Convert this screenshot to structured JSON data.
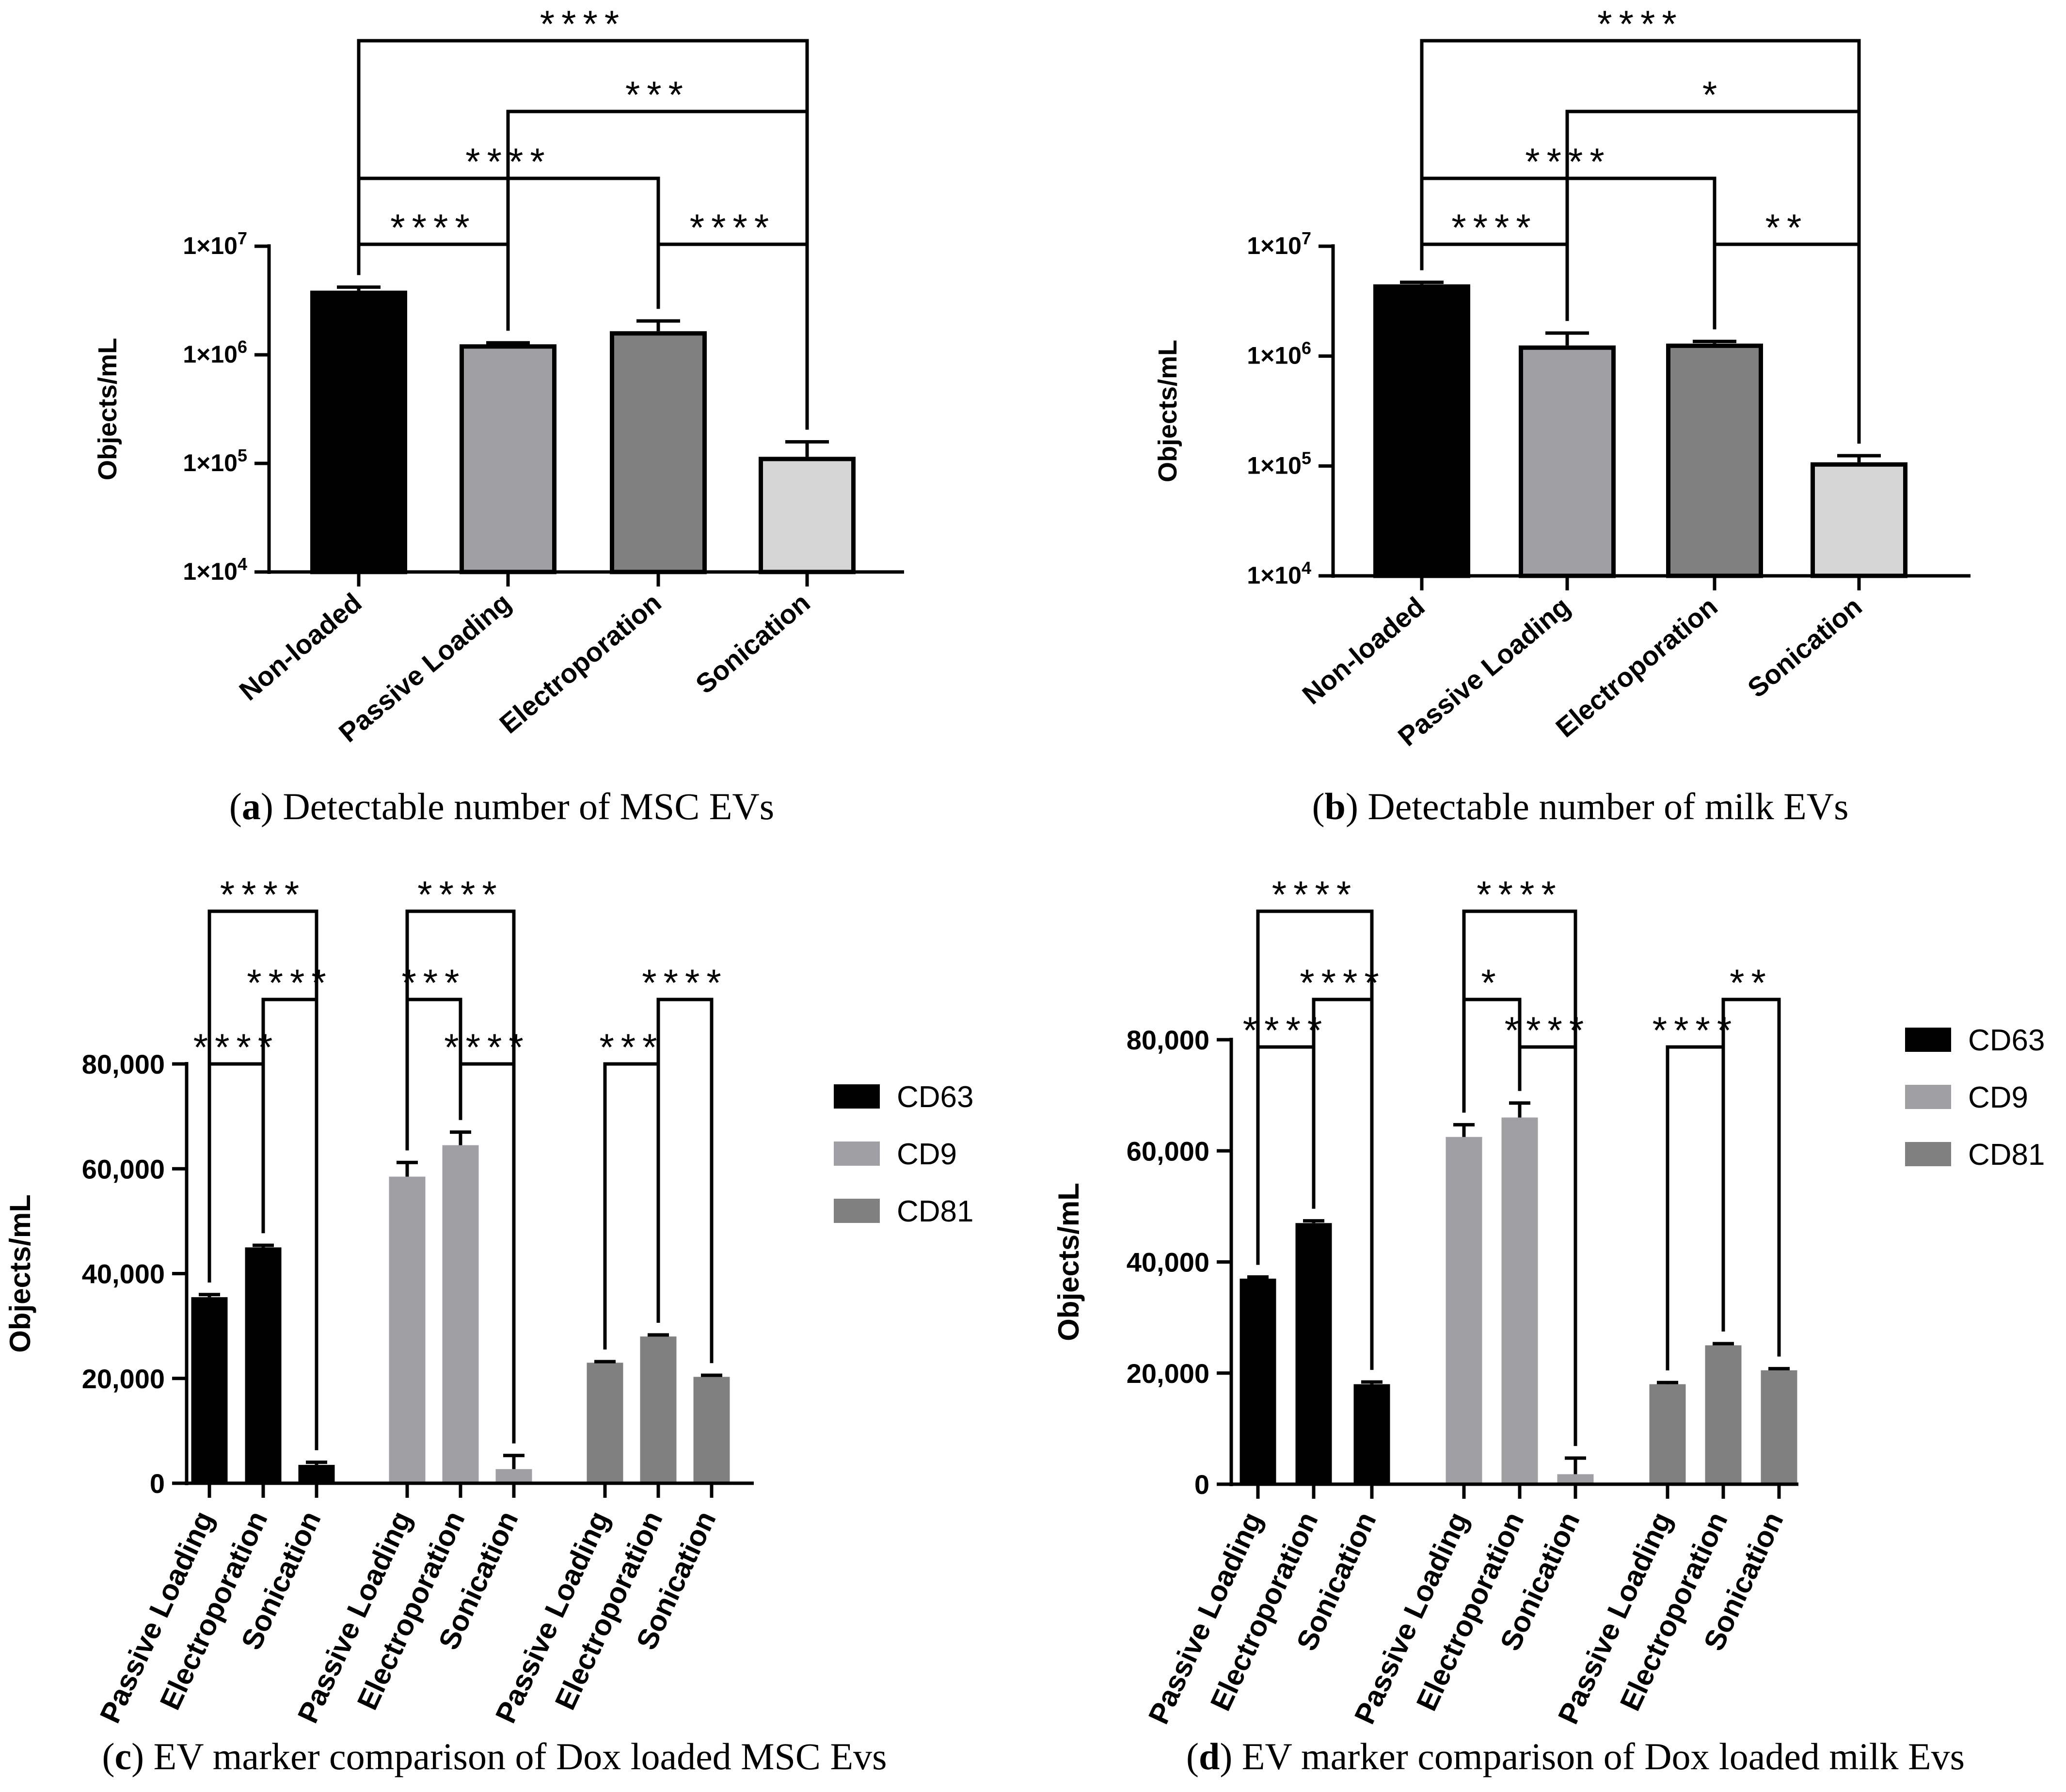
{
  "colors": {
    "non_loaded": "#000000",
    "passive": "#a0a0a4",
    "electro": "#808080",
    "sonication": "#d6d6d6",
    "cd63": "#000000",
    "cd9": "#a0a0a4",
    "cd81": "#808080",
    "axis": "#000000"
  },
  "chart_data": [
    {
      "panel": "a",
      "type": "bar",
      "scale": "log",
      "caption_letter": "a",
      "caption_text": ") Detectable number of MSC EVs",
      "ylabel": "Objects/mL",
      "ylim": [
        10000,
        10000000
      ],
      "yticks": [
        {
          "value": 10000,
          "base": "1×10",
          "exp": "4"
        },
        {
          "value": 100000,
          "base": "1×10",
          "exp": "5"
        },
        {
          "value": 1000000,
          "base": "1×10",
          "exp": "6"
        },
        {
          "value": 10000000,
          "base": "1×10",
          "exp": "7"
        }
      ],
      "categories": [
        "Non-loaded",
        "Passive Loading",
        "Electroporation",
        "Sonication"
      ],
      "values": [
        3900000,
        1250000,
        1650000,
        115000
      ],
      "errors": [
        4200000,
        1290000,
        2050000,
        158000
      ],
      "bar_colors": [
        "#000000",
        "#a0a0a4",
        "#808080",
        "#d6d6d6"
      ],
      "comparisons": [
        {
          "from": 0,
          "to": 1,
          "label": "****"
        },
        {
          "from": 2,
          "to": 3,
          "label": "****"
        },
        {
          "from": 0,
          "to": 2,
          "label": "****"
        },
        {
          "from": 1,
          "to": 3,
          "label": "***"
        },
        {
          "from": 0,
          "to": 3,
          "label": "****"
        }
      ]
    },
    {
      "panel": "b",
      "type": "bar",
      "scale": "log",
      "caption_letter": "b",
      "caption_text": ") Detectable number of milk EVs",
      "ylabel": "Objects/mL",
      "ylim": [
        10000,
        10000000
      ],
      "yticks": [
        {
          "value": 10000,
          "base": "1×10",
          "exp": "4"
        },
        {
          "value": 100000,
          "base": "1×10",
          "exp": "5"
        },
        {
          "value": 1000000,
          "base": "1×10",
          "exp": "6"
        },
        {
          "value": 10000000,
          "base": "1×10",
          "exp": "7"
        }
      ],
      "categories": [
        "Non-loaded",
        "Passive Loading",
        "Electroporation",
        "Sonication"
      ],
      "values": [
        4500000,
        1250000,
        1300000,
        108000
      ],
      "errors": [
        4700000,
        1620000,
        1360000,
        124000
      ],
      "bar_colors": [
        "#000000",
        "#a0a0a4",
        "#808080",
        "#d6d6d6"
      ],
      "comparisons": [
        {
          "from": 0,
          "to": 1,
          "label": "****"
        },
        {
          "from": 2,
          "to": 3,
          "label": "**"
        },
        {
          "from": 0,
          "to": 2,
          "label": "****"
        },
        {
          "from": 1,
          "to": 3,
          "label": "*"
        },
        {
          "from": 0,
          "to": 3,
          "label": "****"
        }
      ]
    },
    {
      "panel": "c",
      "type": "bar",
      "scale": "linear",
      "caption_letter": "c",
      "caption_text": ") EV marker comparison of Dox loaded MSC Evs",
      "ylabel": "Objects/mL",
      "ylim": [
        0,
        80000
      ],
      "yticks": [
        {
          "value": 0,
          "label": "0"
        },
        {
          "value": 20000,
          "label": "20,000"
        },
        {
          "value": 40000,
          "label": "40,000"
        },
        {
          "value": 60000,
          "label": "60,000"
        },
        {
          "value": 80000,
          "label": "80,000"
        }
      ],
      "categories": [
        "Passive Loading",
        "Electroporation",
        "Sonication",
        "Passive Loading",
        "Electroporation",
        "Sonication",
        "Passive Loading",
        "Electroporation",
        "Sonication"
      ],
      "values": [
        35500,
        45000,
        3500,
        58500,
        64500,
        2700,
        23000,
        28000,
        20300
      ],
      "errors": [
        36000,
        45400,
        4000,
        61200,
        67000,
        5300,
        23200,
        28300,
        20600
      ],
      "legend": [
        "CD63",
        "CD9",
        "CD81"
      ],
      "bar_colors": [
        "#000000",
        "#000000",
        "#000000",
        "#a0a0a4",
        "#a0a0a4",
        "#a0a0a4",
        "#808080",
        "#808080",
        "#808080"
      ],
      "comparisons": [
        {
          "from": 0,
          "to": 1,
          "label": "****"
        },
        {
          "from": 1,
          "to": 2,
          "label": "****"
        },
        {
          "from": 0,
          "to": 2,
          "label": "****"
        },
        {
          "from": 4,
          "to": 5,
          "label": "****"
        },
        {
          "from": 3,
          "to": 4,
          "label": "***"
        },
        {
          "from": 3,
          "to": 5,
          "label": "****"
        },
        {
          "from": 6,
          "to": 7,
          "label": "***"
        },
        {
          "from": 7,
          "to": 8,
          "label": "****"
        }
      ]
    },
    {
      "panel": "d",
      "type": "bar",
      "scale": "linear",
      "caption_letter": "d",
      "caption_text": ") EV marker comparison of Dox loaded milk Evs",
      "ylabel": "Objects/mL",
      "ylim": [
        0,
        80000
      ],
      "yticks": [
        {
          "value": 0,
          "label": "0"
        },
        {
          "value": 20000,
          "label": "20,000"
        },
        {
          "value": 40000,
          "label": "40,000"
        },
        {
          "value": 60000,
          "label": "60,000"
        },
        {
          "value": 80000,
          "label": "80,000"
        }
      ],
      "categories": [
        "Passive Loading",
        "Electroporation",
        "Sonication",
        "Passive Loading",
        "Electroporation",
        "Sonication",
        "Passive Loading",
        "Electroporation",
        "Sonication"
      ],
      "values": [
        37000,
        47000,
        18000,
        62500,
        66000,
        1800,
        18000,
        25000,
        20500
      ],
      "errors": [
        37300,
        47400,
        18400,
        64700,
        68600,
        4700,
        18300,
        25300,
        20800
      ],
      "legend": [
        "CD63",
        "CD9",
        "CD81"
      ],
      "bar_colors": [
        "#000000",
        "#000000",
        "#000000",
        "#a0a0a4",
        "#a0a0a4",
        "#a0a0a4",
        "#808080",
        "#808080",
        "#808080"
      ],
      "comparisons": [
        {
          "from": 0,
          "to": 1,
          "label": "****"
        },
        {
          "from": 1,
          "to": 2,
          "label": "****"
        },
        {
          "from": 0,
          "to": 2,
          "label": "****"
        },
        {
          "from": 4,
          "to": 5,
          "label": "****"
        },
        {
          "from": 3,
          "to": 4,
          "label": "*"
        },
        {
          "from": 3,
          "to": 5,
          "label": "****"
        },
        {
          "from": 6,
          "to": 7,
          "label": "****"
        },
        {
          "from": 7,
          "to": 8,
          "label": "**"
        }
      ]
    }
  ]
}
